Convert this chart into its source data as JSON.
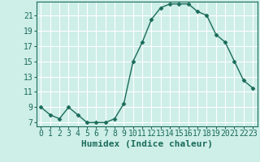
{
  "x": [
    0,
    1,
    2,
    3,
    4,
    5,
    6,
    7,
    8,
    9,
    10,
    11,
    12,
    13,
    14,
    15,
    16,
    17,
    18,
    19,
    20,
    21,
    22,
    23
  ],
  "y": [
    9,
    8,
    7.5,
    9,
    8,
    7,
    7,
    7,
    7.5,
    9.5,
    15,
    17.5,
    20.5,
    22,
    22.5,
    22.5,
    22.5,
    21.5,
    21,
    18.5,
    17.5,
    15,
    12.5,
    11.5
  ],
  "line_color": "#1a6b5a",
  "marker_color": "#1a6b5a",
  "bg_color": "#ceeee8",
  "grid_color": "#ffffff",
  "xlabel": "Humidex (Indice chaleur)",
  "ylim": [
    6.5,
    22.8
  ],
  "xlim": [
    -0.5,
    23.5
  ],
  "yticks": [
    7,
    9,
    11,
    13,
    15,
    17,
    19,
    21
  ],
  "xticks": [
    0,
    1,
    2,
    3,
    4,
    5,
    6,
    7,
    8,
    9,
    10,
    11,
    12,
    13,
    14,
    15,
    16,
    17,
    18,
    19,
    20,
    21,
    22,
    23
  ],
  "font_color": "#1a6b5a",
  "tick_fontsize": 7,
  "xlabel_fontsize": 8
}
